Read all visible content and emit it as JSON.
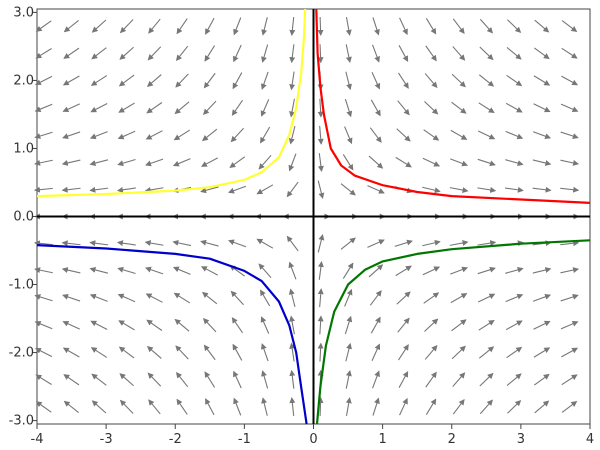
{
  "chart_data": {
    "type": "line",
    "subtype": "direction-field",
    "title": "",
    "xlabel": "",
    "ylabel": "",
    "xlim": [
      -4,
      4
    ],
    "ylim": [
      -3.05,
      3.05
    ],
    "x_ticks": [
      -4,
      -3,
      -2,
      -1,
      0,
      1,
      2,
      3,
      4
    ],
    "x_tick_labels": [
      "-4",
      "-3",
      "-2",
      "-1",
      "0",
      "1",
      "2",
      "3",
      "4"
    ],
    "y_ticks": [
      -3,
      -2,
      -1,
      0,
      1,
      2,
      3
    ],
    "y_tick_labels": [
      "-3.0",
      "-2.0",
      "-1.0",
      "0.0",
      "1.0",
      "2.0",
      "3.0"
    ],
    "grid": false,
    "vector_field": {
      "x_min": -3.9,
      "x_max": 3.9,
      "x_step": 0.4,
      "y_min": -2.8,
      "y_max": 2.8,
      "y_step": 0.4,
      "color": "#777777"
    },
    "series": [
      {
        "color": "#ffff33",
        "points": [
          [
            -4,
            0.3
          ],
          [
            -3,
            0.33
          ],
          [
            -2,
            0.38
          ],
          [
            -1.5,
            0.43
          ],
          [
            -1,
            0.54
          ],
          [
            -0.75,
            0.65
          ],
          [
            -0.5,
            0.87
          ],
          [
            -0.35,
            1.2
          ],
          [
            -0.25,
            1.6
          ],
          [
            -0.18,
            2.1
          ],
          [
            -0.14,
            2.6
          ],
          [
            -0.12,
            3.05
          ]
        ]
      },
      {
        "color": "#ff0000",
        "points": [
          [
            0.04,
            3.05
          ],
          [
            0.06,
            2.4
          ],
          [
            0.1,
            1.9
          ],
          [
            0.15,
            1.5
          ],
          [
            0.25,
            1.0
          ],
          [
            0.4,
            0.75
          ],
          [
            0.6,
            0.6
          ],
          [
            1,
            0.46
          ],
          [
            1.5,
            0.36
          ],
          [
            2,
            0.3
          ],
          [
            3,
            0.25
          ],
          [
            4,
            0.2
          ]
        ]
      },
      {
        "color": "#0000cc",
        "points": [
          [
            -4,
            -0.42
          ],
          [
            -3,
            -0.47
          ],
          [
            -2,
            -0.55
          ],
          [
            -1.5,
            -0.62
          ],
          [
            -1,
            -0.8
          ],
          [
            -0.75,
            -0.95
          ],
          [
            -0.5,
            -1.25
          ],
          [
            -0.35,
            -1.6
          ],
          [
            -0.25,
            -2.0
          ],
          [
            -0.18,
            -2.5
          ],
          [
            -0.1,
            -3.05
          ]
        ]
      },
      {
        "color": "#007700",
        "points": [
          [
            0.05,
            -3.05
          ],
          [
            0.1,
            -2.5
          ],
          [
            0.18,
            -1.9
          ],
          [
            0.3,
            -1.4
          ],
          [
            0.5,
            -1.0
          ],
          [
            0.75,
            -0.78
          ],
          [
            1,
            -0.66
          ],
          [
            1.5,
            -0.55
          ],
          [
            2,
            -0.48
          ],
          [
            3,
            -0.4
          ],
          [
            4,
            -0.35
          ]
        ]
      }
    ],
    "axis_lines": {
      "x": 0,
      "y": 0,
      "color": "#000000"
    }
  }
}
